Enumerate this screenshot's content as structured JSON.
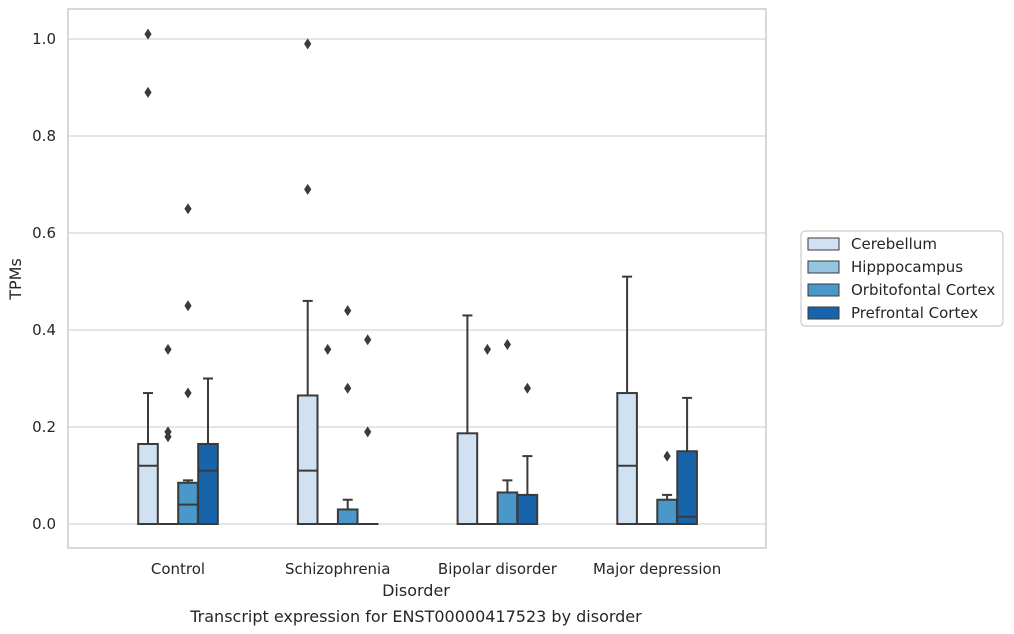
{
  "caption": "Transcript expression for ENST00000417523 by disorder",
  "chart_data": {
    "type": "box",
    "title": "",
    "xlabel": "Disorder",
    "ylabel": "TPMs",
    "ylim": [
      -0.05,
      1.06
    ],
    "yticks": [
      0.0,
      0.2,
      0.4,
      0.6,
      0.8,
      1.0
    ],
    "ytick_labels": [
      "0.0",
      "0.2",
      "0.4",
      "0.6",
      "0.8",
      "1.0"
    ],
    "grid": "horizontal",
    "legend_position": "right",
    "categories": [
      "Control",
      "Schizophrenia",
      "Bipolar disorder",
      "Major depression"
    ],
    "series": [
      {
        "name": "Cerebellum",
        "color": "#d0e1f2",
        "boxes": [
          {
            "min": 0.0,
            "q1": 0.0,
            "median": 0.12,
            "q3": 0.165,
            "max": 0.27,
            "outliers": [
              0.89,
              1.01
            ]
          },
          {
            "min": 0.0,
            "q1": 0.0,
            "median": 0.11,
            "q3": 0.265,
            "max": 0.46,
            "outliers": [
              0.69,
              0.99
            ]
          },
          {
            "min": 0.0,
            "q1": 0.0,
            "median": 0.0,
            "q3": 0.187,
            "max": 0.43,
            "outliers": []
          },
          {
            "min": 0.0,
            "q1": 0.0,
            "median": 0.12,
            "q3": 0.27,
            "max": 0.51,
            "outliers": []
          }
        ]
      },
      {
        "name": "Hipppocampus",
        "color": "#94c4df",
        "boxes": [
          {
            "min": 0.0,
            "q1": 0.0,
            "median": 0.0,
            "q3": 0.0,
            "max": 0.0,
            "outliers": [
              0.18,
              0.19,
              0.36
            ]
          },
          {
            "min": 0.0,
            "q1": 0.0,
            "median": 0.0,
            "q3": 0.0,
            "max": 0.0,
            "outliers": [
              0.36
            ]
          },
          {
            "min": 0.0,
            "q1": 0.0,
            "median": 0.0,
            "q3": 0.0,
            "max": 0.0,
            "outliers": [
              0.36
            ]
          },
          {
            "min": 0.0,
            "q1": 0.0,
            "median": 0.0,
            "q3": 0.0,
            "max": 0.0,
            "outliers": []
          }
        ]
      },
      {
        "name": "Orbitofontal Cortex",
        "color": "#4a98c9",
        "boxes": [
          {
            "min": 0.0,
            "q1": 0.0,
            "median": 0.04,
            "q3": 0.085,
            "max": 0.09,
            "outliers": [
              0.27,
              0.45,
              0.65
            ]
          },
          {
            "min": 0.0,
            "q1": 0.0,
            "median": 0.0,
            "q3": 0.03,
            "max": 0.05,
            "outliers": [
              0.28,
              0.44
            ]
          },
          {
            "min": 0.0,
            "q1": 0.0,
            "median": 0.0,
            "q3": 0.065,
            "max": 0.09,
            "outliers": [
              0.37
            ]
          },
          {
            "min": 0.0,
            "q1": 0.0,
            "median": 0.0,
            "q3": 0.05,
            "max": 0.06,
            "outliers": [
              0.14
            ]
          }
        ]
      },
      {
        "name": "Prefrontal Cortex",
        "color": "#1764ab",
        "boxes": [
          {
            "min": 0.0,
            "q1": 0.0,
            "median": 0.11,
            "q3": 0.165,
            "max": 0.3,
            "outliers": []
          },
          {
            "min": 0.0,
            "q1": 0.0,
            "median": 0.0,
            "q3": 0.0,
            "max": 0.0,
            "outliers": [
              0.19,
              0.38
            ]
          },
          {
            "min": 0.0,
            "q1": 0.0,
            "median": 0.0,
            "q3": 0.06,
            "max": 0.14,
            "outliers": [
              0.28
            ]
          },
          {
            "min": 0.0,
            "q1": 0.0,
            "median": 0.015,
            "q3": 0.15,
            "max": 0.26,
            "outliers": []
          }
        ]
      }
    ]
  }
}
